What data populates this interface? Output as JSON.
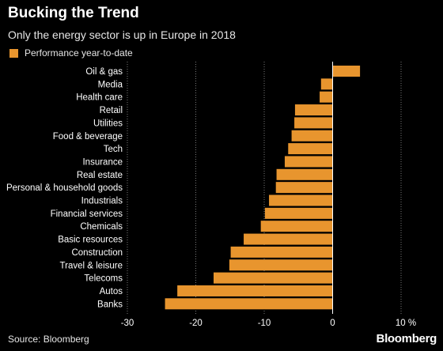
{
  "header": {
    "title": "Bucking the Trend",
    "subtitle": "Only the energy sector is up in Europe in 2018"
  },
  "colors": {
    "bar": "#e8952e",
    "background": "#000000",
    "grid": "#777777"
  },
  "footer": {
    "source": "Source: Bloomberg",
    "brand": "Bloomberg"
  },
  "chart_data": {
    "type": "bar",
    "orientation": "horizontal",
    "title": "Bucking the Trend",
    "subtitle": "Only the energy sector is up in Europe in 2018",
    "legend": {
      "position": "top-left",
      "entries": [
        "Performance year-to-date"
      ]
    },
    "categories": [
      "Oil & gas",
      "Media",
      "Health care",
      "Retail",
      "Utilities",
      "Food & beverage",
      "Tech",
      "Insurance",
      "Real estate",
      "Personal & household goods",
      "Industrials",
      "Financial services",
      "Chemicals",
      "Basic resources",
      "Construction",
      "Travel & leisure",
      "Telecoms",
      "Autos",
      "Banks"
    ],
    "series": [
      {
        "name": "Performance year-to-date",
        "values": [
          4.0,
          -1.7,
          -1.9,
          -5.5,
          -5.6,
          -6.0,
          -6.5,
          -7.0,
          -8.2,
          -8.3,
          -9.3,
          -9.9,
          -10.5,
          -13.0,
          -14.9,
          -15.1,
          -17.4,
          -22.7,
          -24.5
        ]
      }
    ],
    "xlim": [
      -30,
      10
    ],
    "xticks": [
      -30,
      -20,
      -10,
      0,
      10
    ],
    "xtick_labels": [
      "-30",
      "-20",
      "-10",
      "0",
      "10 %"
    ],
    "grid": "vertical dotted",
    "xlabel": "",
    "ylabel": ""
  }
}
